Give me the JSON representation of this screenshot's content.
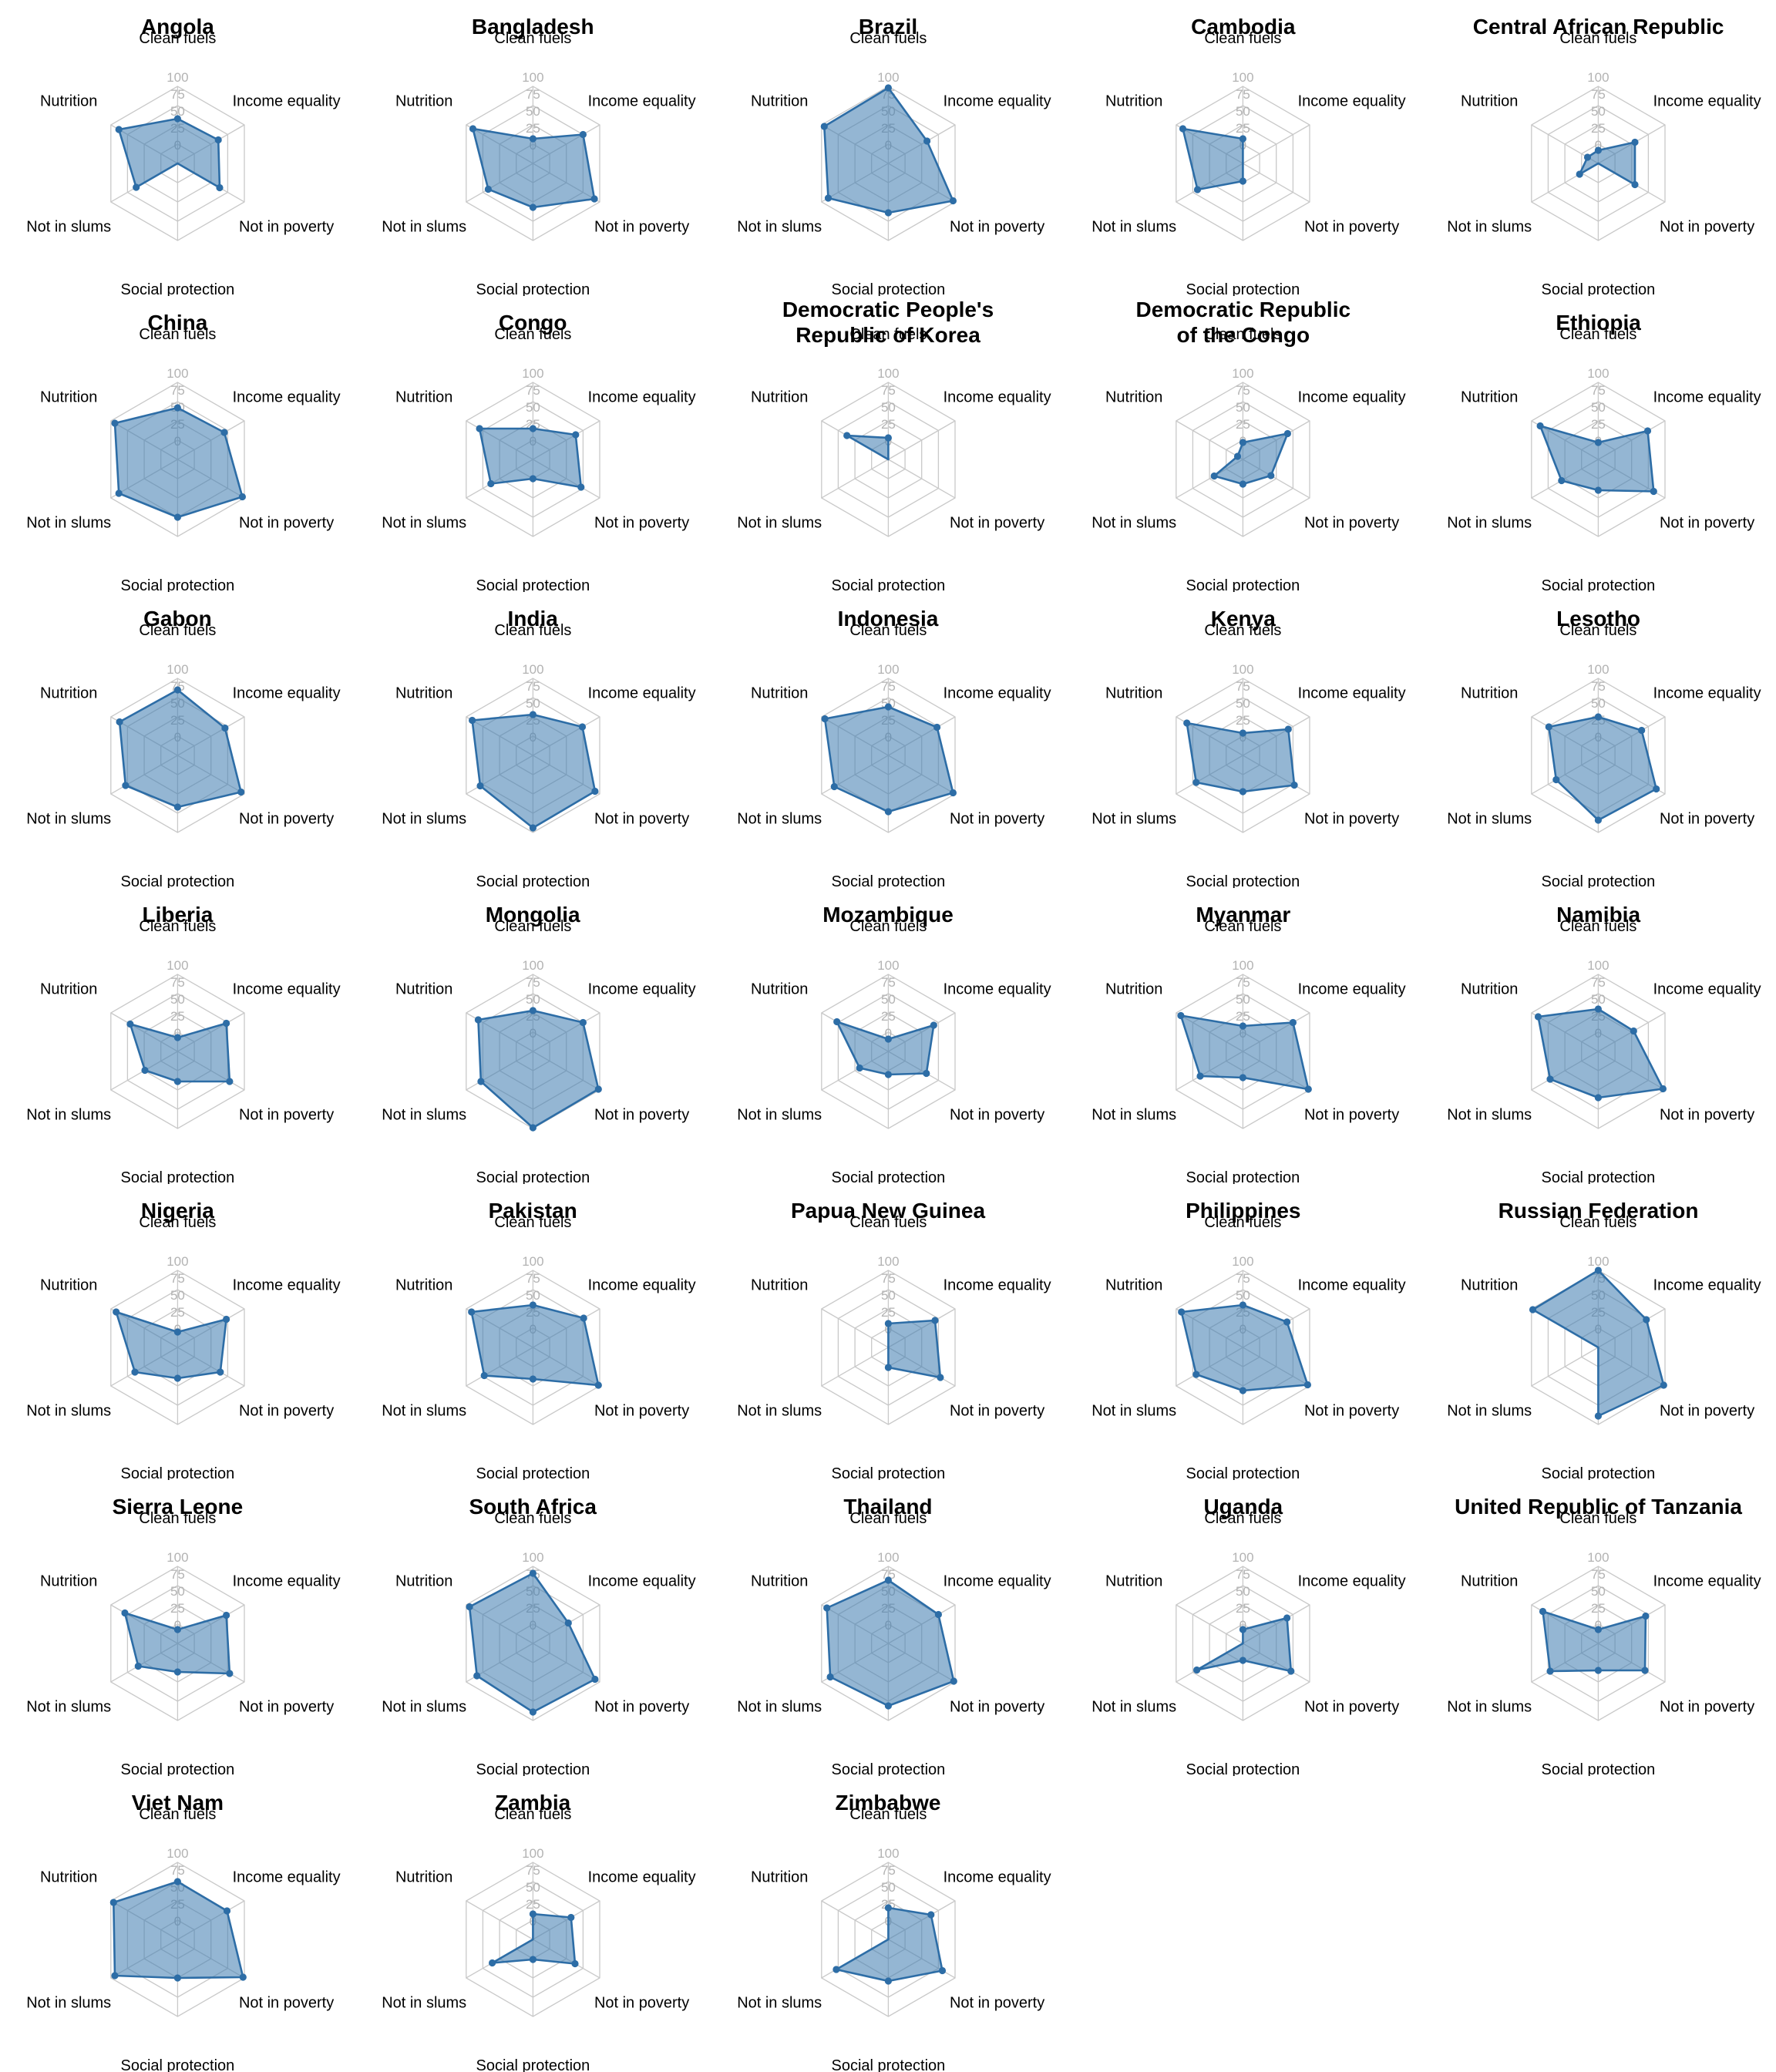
{
  "figure": {
    "background": "#ffffff",
    "rows": 7,
    "cols": 5,
    "description": "Grid of radar charts, one per country, six deprivation indicators scored 0-100"
  },
  "chart_data": {
    "type": "radar",
    "axes": [
      "Clean fuels",
      "Income equality",
      "Not in poverty",
      "Social protection",
      "Not in slums",
      "Nutrition"
    ],
    "scale_min": 0,
    "scale_max": 100,
    "scale_ticks": [
      "0",
      "25",
      "50",
      "75",
      "100"
    ],
    "grid": true,
    "legend_position": "none",
    "style": {
      "fill_color": "#4682b4",
      "fill_opacity": 0.58,
      "line_color": "#2d6da6",
      "marker_color": "#2d6da6",
      "grid_color": "#c9c9c9",
      "tick_color": "#b3b3b3",
      "label_color": "#000000",
      "title_color": "#000000"
    },
    "series": [
      {
        "name": "Angola",
        "values": [
          58,
          61,
          63,
          0,
          62,
          88
        ]
      },
      {
        "name": "Bangladesh",
        "values": [
          32,
          75,
          92,
          57,
          67,
          90
        ]
      },
      {
        "name": "Brazil",
        "values": [
          98,
          58,
          97,
          64,
          90,
          96
        ]
      },
      {
        "name": "Cambodia",
        "values": [
          32,
          0,
          0,
          23,
          68,
          90
        ]
      },
      {
        "name": "Central African Republic",
        "values": [
          17,
          55,
          55,
          0,
          28,
          16
        ]
      },
      {
        "name": "China",
        "values": [
          67,
          70,
          97,
          75,
          88,
          94
        ]
      },
      {
        "name": "Congo",
        "values": [
          40,
          64,
          72,
          25,
          63,
          80
        ]
      },
      {
        "name": "Democratic People's Republic of Korea",
        "name_lines": [
          "Democratic People's",
          "Republic of Korea"
        ],
        "values": [
          28,
          0,
          0,
          0,
          0,
          62
        ]
      },
      {
        "name": "Democratic Republic of the Congo",
        "name_lines": [
          "Democratic Republic",
          "of the Congo"
        ],
        "values": [
          22,
          67,
          42,
          32,
          43,
          8
        ]
      },
      {
        "name": "Ethiopia",
        "values": [
          22,
          74,
          83,
          40,
          55,
          87
        ]
      },
      {
        "name": "Gabon",
        "values": [
          85,
          71,
          95,
          67,
          78,
          87
        ]
      },
      {
        "name": "India",
        "values": [
          53,
          74,
          93,
          94,
          79,
          91
        ]
      },
      {
        "name": "Indonesia",
        "values": [
          63,
          73,
          97,
          73,
          81,
          95
        ]
      },
      {
        "name": "Kenya",
        "values": [
          29,
          68,
          77,
          47,
          70,
          84
        ]
      },
      {
        "name": "Lesotho",
        "values": [
          50,
          65,
          87,
          84,
          63,
          74
        ]
      },
      {
        "name": "Liberia",
        "values": [
          18,
          73,
          78,
          39,
          49,
          71
        ]
      },
      {
        "name": "Mongolia",
        "values": [
          53,
          75,
          98,
          99,
          78,
          82
        ]
      },
      {
        "name": "Mozambique",
        "values": [
          16,
          68,
          57,
          30,
          43,
          77
        ]
      },
      {
        "name": "Myanmar",
        "values": [
          33,
          75,
          98,
          34,
          64,
          93
        ]
      },
      {
        "name": "Namibia",
        "values": [
          55,
          53,
          97,
          60,
          72,
          90
        ]
      },
      {
        "name": "Nigeria",
        "values": [
          20,
          73,
          64,
          40,
          64,
          92
        ]
      },
      {
        "name": "Pakistan",
        "values": [
          55,
          76,
          98,
          41,
          73,
          92
        ]
      },
      {
        "name": "Papua New Guinea",
        "values": [
          31,
          70,
          78,
          26,
          0,
          0
        ]
      },
      {
        "name": "Philippines",
        "values": [
          55,
          66,
          97,
          56,
          70,
          92
        ]
      },
      {
        "name": "Russian Federation",
        "values": [
          100,
          72,
          98,
          89,
          0,
          98
        ]
      },
      {
        "name": "Sierra Leone",
        "values": [
          18,
          73,
          78,
          37,
          59,
          79
        ]
      },
      {
        "name": "South Africa",
        "values": [
          91,
          53,
          93,
          89,
          84,
          95
        ]
      },
      {
        "name": "Thailand",
        "values": [
          82,
          75,
          98,
          81,
          87,
          92
        ]
      },
      {
        "name": "Uganda",
        "values": [
          18,
          66,
          72,
          22,
          69,
          0
        ]
      },
      {
        "name": "United Republic of Tanzania",
        "values": [
          18,
          71,
          70,
          35,
          72,
          83
        ]
      },
      {
        "name": "Viet Nam",
        "values": [
          75,
          74,
          98,
          50,
          94,
          96
        ]
      },
      {
        "name": "Zambia",
        "values": [
          33,
          57,
          63,
          26,
          61,
          0
        ]
      },
      {
        "name": "Zimbabwe",
        "values": [
          41,
          64,
          81,
          54,
          78,
          0
        ]
      }
    ]
  }
}
